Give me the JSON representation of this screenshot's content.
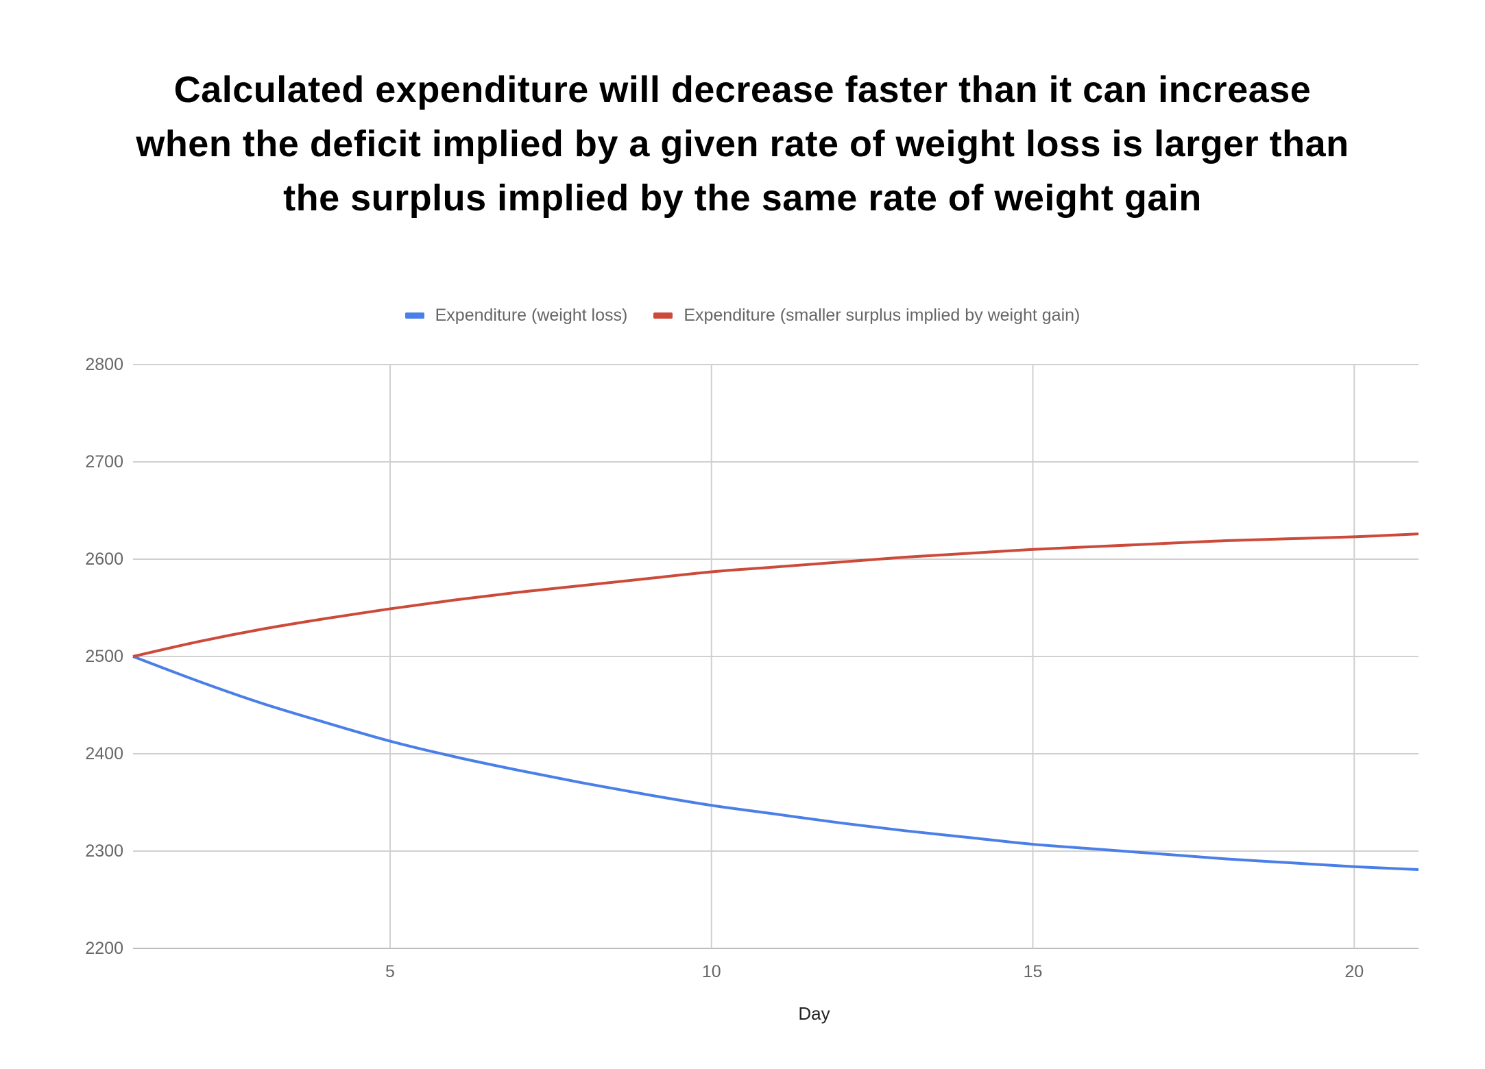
{
  "chart_data": {
    "type": "line",
    "title_lines": [
      "Calculated expenditure will decrease faster than it can increase",
      "when the deficit implied by a given rate of weight loss is larger than",
      "the surplus implied by the same rate of weight gain"
    ],
    "xlabel": "Day",
    "ylabel": "",
    "xlim": [
      1,
      21
    ],
    "ylim": [
      2200,
      2800
    ],
    "xticks": [
      5,
      10,
      15,
      20
    ],
    "yticks": [
      2200,
      2300,
      2400,
      2500,
      2600,
      2700,
      2800
    ],
    "grid": true,
    "legend_position": "top",
    "x": [
      1,
      2,
      3,
      4,
      5,
      6,
      7,
      8,
      9,
      10,
      11,
      12,
      13,
      14,
      15,
      16,
      17,
      18,
      19,
      20,
      21
    ],
    "series": [
      {
        "name": "Expenditure (weight loss)",
        "color": "#4a7fe8",
        "values": [
          2500,
          2475,
          2452,
          2432,
          2413,
          2397,
          2383,
          2370,
          2358,
          2347,
          2338,
          2329,
          2321,
          2314,
          2307,
          2302,
          2297,
          2292,
          2288,
          2284,
          2281
        ]
      },
      {
        "name": "Expenditure (smaller surplus implied by weight gain)",
        "color": "#cc4a3a",
        "values": [
          2500,
          2515,
          2528,
          2539,
          2549,
          2558,
          2566,
          2573,
          2580,
          2587,
          2592,
          2597,
          2602,
          2606,
          2610,
          2613,
          2616,
          2619,
          2621,
          2623,
          2626
        ]
      }
    ]
  }
}
